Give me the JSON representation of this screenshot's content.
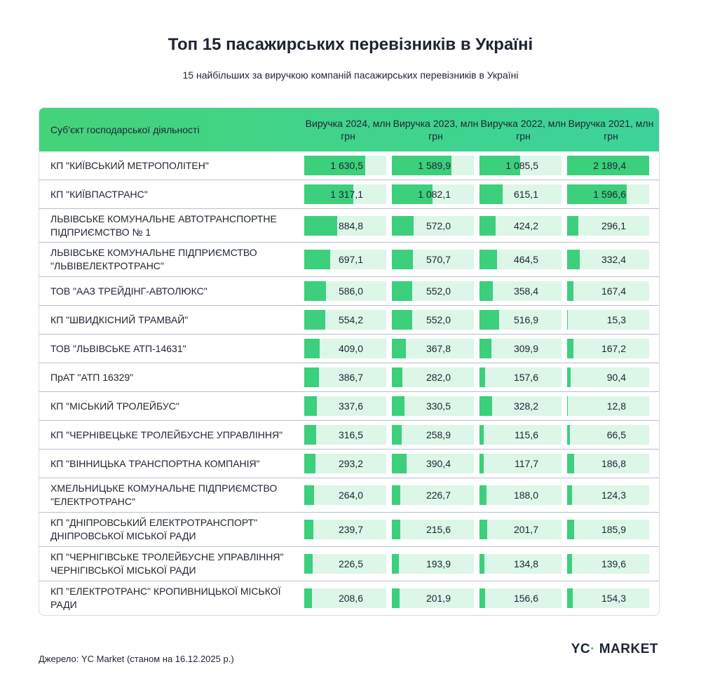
{
  "title": "Топ 15 пасажирських перевізників в Україні",
  "subtitle": "15 найбільших за виручкою компаній пасажирських перевізників в Україні",
  "source": "Джерело: YC Market (станом на 16.12.2025 р.)",
  "logo": "YC MARKET",
  "colors": {
    "bar": "#3ccf7c",
    "bar_track": "#dcf6e8",
    "header_from": "#44d37a",
    "header_to": "#3dd39a"
  },
  "chart_data": {
    "type": "table",
    "columns": [
      "Суб'єкт господарської діяльності",
      "Виручка 2024, млн грн",
      "Виручка 2023, млн грн",
      "Виручка 2022, млн грн",
      "Виручка 2021, млн грн"
    ],
    "rows": [
      {
        "name": "КП \"КИЇВСЬКИЙ МЕТРОПОЛІТЕН\"",
        "values": [
          1630.5,
          1589.9,
          1085.5,
          2189.4
        ],
        "labels": [
          "1 630,5",
          "1 589,9",
          "1 085,5",
          "2 189,4"
        ]
      },
      {
        "name": "КП \"КИЇВПАСТРАНС\"",
        "values": [
          1317.1,
          1082.1,
          615.1,
          1596.6
        ],
        "labels": [
          "1 317,1",
          "1 082,1",
          "615,1",
          "1 596,6"
        ]
      },
      {
        "name": "ЛЬВІВСЬКЕ КОМУНАЛЬНЕ АВТОТРАНСПОРТНЕ ПІДПРИЄМСТВО № 1",
        "values": [
          884.8,
          572.0,
          424.2,
          296.1
        ],
        "labels": [
          "884,8",
          "572,0",
          "424,2",
          "296,1"
        ]
      },
      {
        "name": "ЛЬВІВСЬКЕ КОМУНАЛЬНЕ ПІДПРИЄМСТВО \"ЛЬВІВЕЛЕКТРОТРАНС\"",
        "values": [
          697.1,
          570.7,
          464.5,
          332.4
        ],
        "labels": [
          "697,1",
          "570,7",
          "464,5",
          "332,4"
        ]
      },
      {
        "name": "ТОВ \"ААЗ ТРЕЙДІНГ-АВТОЛЮКС\"",
        "values": [
          586.0,
          552.0,
          358.4,
          167.4
        ],
        "labels": [
          "586,0",
          "552,0",
          "358,4",
          "167,4"
        ]
      },
      {
        "name": "КП \"ШВИДКІСНИЙ ТРАМВАЙ\"",
        "values": [
          554.2,
          552.0,
          516.9,
          15.3
        ],
        "labels": [
          "554,2",
          "552,0",
          "516,9",
          "15,3"
        ]
      },
      {
        "name": "ТОВ \"ЛЬВІВСЬКЕ АТП-14631\"",
        "values": [
          409.0,
          367.8,
          309.9,
          167.2
        ],
        "labels": [
          "409,0",
          "367,8",
          "309,9",
          "167,2"
        ]
      },
      {
        "name": "ПрАТ \"АТП 16329\"",
        "values": [
          386.7,
          282.0,
          157.6,
          90.4
        ],
        "labels": [
          "386,7",
          "282,0",
          "157,6",
          "90,4"
        ]
      },
      {
        "name": "КП \"МІСЬКИЙ ТРОЛЕЙБУС\"",
        "values": [
          337.6,
          330.5,
          328.2,
          12.8
        ],
        "labels": [
          "337,6",
          "330,5",
          "328,2",
          "12,8"
        ]
      },
      {
        "name": "КП \"ЧЕРНІВЕЦЬКЕ ТРОЛЕЙБУСНЕ УПРАВЛІННЯ\"",
        "values": [
          316.5,
          258.9,
          115.6,
          66.5
        ],
        "labels": [
          "316,5",
          "258,9",
          "115,6",
          "66,5"
        ]
      },
      {
        "name": "КП \"ВІННИЦЬКА ТРАНСПОРТНА КОМПАНІЯ\"",
        "values": [
          293.2,
          390.4,
          117.7,
          186.8
        ],
        "labels": [
          "293,2",
          "390,4",
          "117,7",
          "186,8"
        ]
      },
      {
        "name": "ХМЕЛЬНИЦЬКЕ КОМУНАЛЬНЕ ПІДПРИЄМСТВО \"ЕЛЕКТРОТРАНС\"",
        "values": [
          264.0,
          226.7,
          188.0,
          124.3
        ],
        "labels": [
          "264,0",
          "226,7",
          "188,0",
          "124,3"
        ]
      },
      {
        "name": "КП \"ДНІПРОВСЬКИЙ ЕЛЕКТРОТРАНСПОРТ\" ДНІПРОВСЬКОЇ МІСЬКОЇ РАДИ",
        "values": [
          239.7,
          215.6,
          201.7,
          185.9
        ],
        "labels": [
          "239,7",
          "215,6",
          "201,7",
          "185,9"
        ]
      },
      {
        "name": "КП \"ЧЕРНІГІВСЬКЕ ТРОЛЕЙБУСНЕ УПРАВЛІННЯ\" ЧЕРНІГІВСЬКОЇ МІСЬКОЇ РАДИ",
        "values": [
          226.5,
          193.9,
          134.8,
          139.6
        ],
        "labels": [
          "226,5",
          "193,9",
          "134,8",
          "139,6"
        ]
      },
      {
        "name": "КП \"ЕЛЕКТРОТРАНС\" КРОПИВНИЦЬКОЇ МІСЬКОЇ РАДИ",
        "values": [
          208.6,
          201.9,
          156.6,
          154.3
        ],
        "labels": [
          "208,6",
          "201,9",
          "156,6",
          "154,3"
        ]
      }
    ],
    "bar_scale_max": 2189.4
  }
}
